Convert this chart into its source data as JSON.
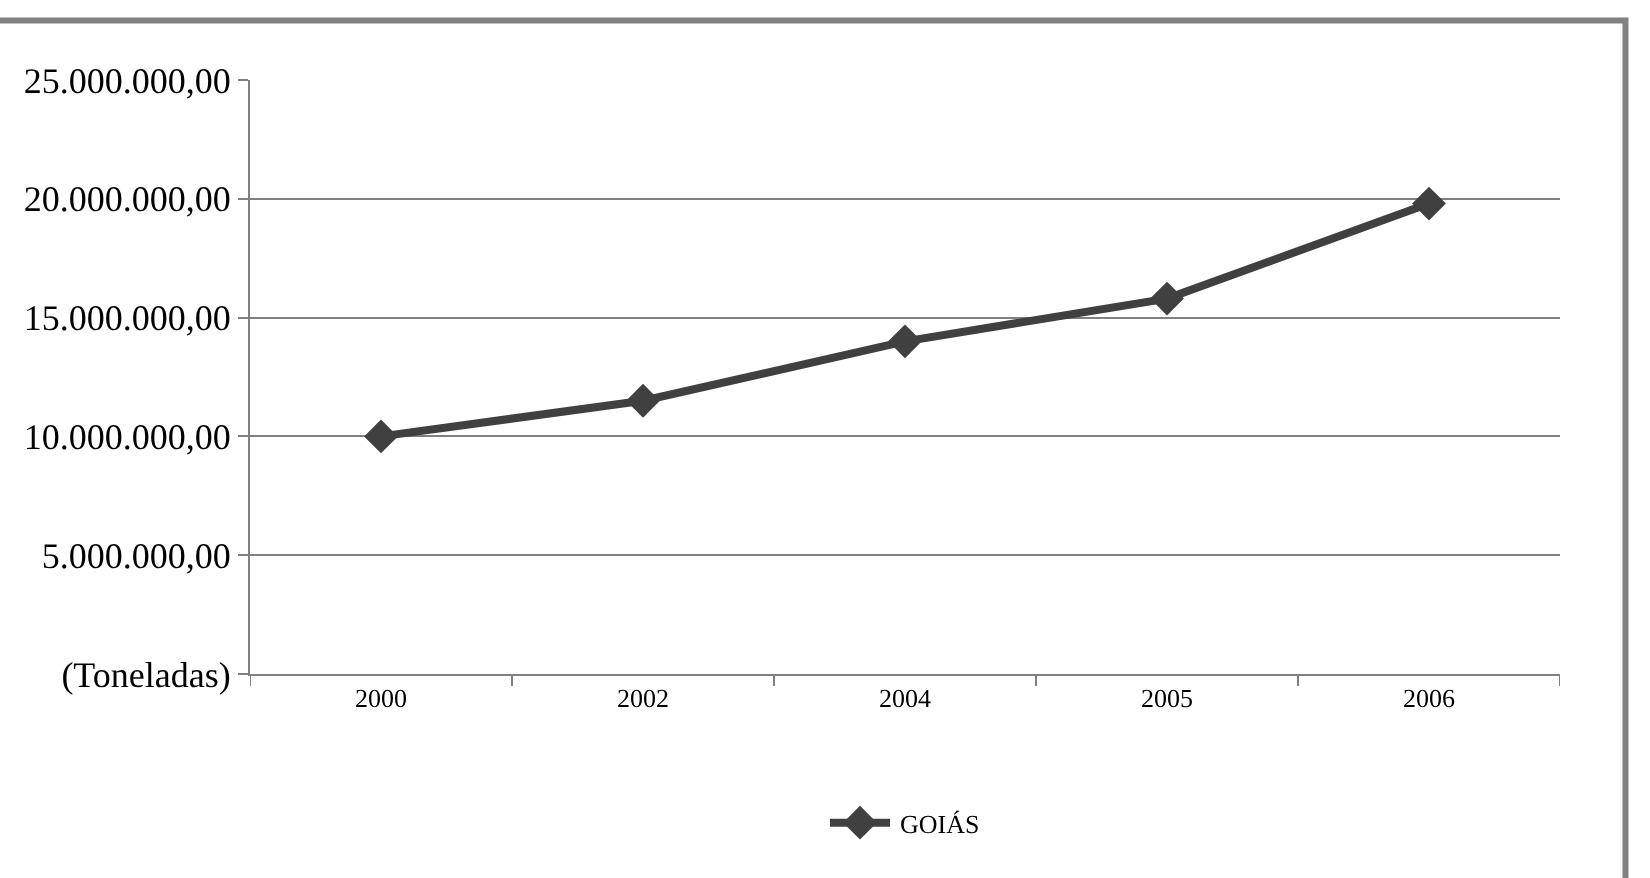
{
  "chart_data": {
    "type": "line",
    "categories": [
      "2000",
      "2002",
      "2004",
      "2005",
      "2006"
    ],
    "series": [
      {
        "name": "GOIÁS",
        "color": "#404040",
        "values": [
          10000000,
          11500000,
          14000000,
          15800000,
          19800000
        ]
      }
    ],
    "ylim": [
      0,
      25000000
    ],
    "yticks": [
      {
        "value": 0,
        "label": "(Toneladas)"
      },
      {
        "value": 5000000,
        "label": "5.000.000,00"
      },
      {
        "value": 10000000,
        "label": "10.000.000,00"
      },
      {
        "value": 15000000,
        "label": "15.000.000,00"
      },
      {
        "value": 20000000,
        "label": "20.000.000,00"
      },
      {
        "value": 25000000,
        "label": "25.000.000,00"
      }
    ],
    "grid": "y",
    "legend": "bottom",
    "marker": "diamond",
    "line_style": "solid"
  }
}
